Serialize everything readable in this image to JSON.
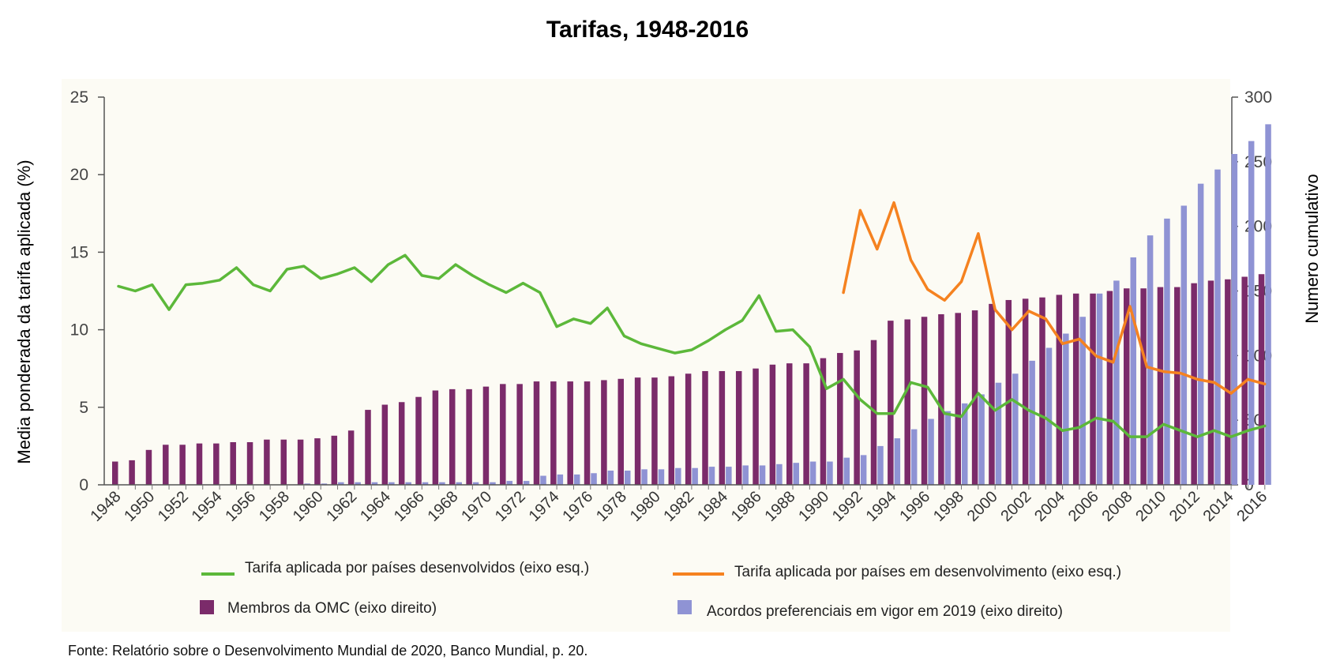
{
  "chart_data": {
    "type": "bar+line",
    "title": "Tarifas, 1948-2016",
    "ylabel_left": "Media ponderada da tarifa aplicada (%)",
    "ylabel_right": "Numero cumulativo",
    "ylim_left": [
      0,
      25
    ],
    "ylim_right": [
      0,
      300
    ],
    "yticks_left": [
      "0",
      "5",
      "10",
      "15",
      "20",
      "25"
    ],
    "yticks_right": [
      "0",
      "50",
      "100",
      "150",
      "200",
      "250",
      "300"
    ],
    "grid": false,
    "legend_position": "bottom",
    "source": "Fonte: Relatório sobre o Desenvolvimento Mundial de 2020, Banco Mundial, p. 20.",
    "colors": {
      "developed": "#5cb83a",
      "developing": "#f58220",
      "wto": "#7b2b6a",
      "pta": "#8f93d4"
    },
    "x": [
      1948,
      1949,
      1950,
      1951,
      1952,
      1953,
      1954,
      1955,
      1956,
      1957,
      1958,
      1959,
      1960,
      1961,
      1962,
      1963,
      1964,
      1965,
      1966,
      1967,
      1968,
      1969,
      1970,
      1971,
      1972,
      1973,
      1974,
      1975,
      1976,
      1977,
      1978,
      1979,
      1980,
      1981,
      1982,
      1983,
      1984,
      1985,
      1986,
      1987,
      1988,
      1989,
      1990,
      1991,
      1992,
      1993,
      1994,
      1995,
      1996,
      1997,
      1998,
      1999,
      2000,
      2001,
      2002,
      2003,
      2004,
      2005,
      2006,
      2007,
      2008,
      2009,
      2010,
      2011,
      2012,
      2013,
      2014,
      2015,
      2016
    ],
    "xtick_labels": [
      "1948",
      "1950",
      "1952",
      "1954",
      "1956",
      "1958",
      "1960",
      "1962",
      "1964",
      "1966",
      "1968",
      "1970",
      "1972",
      "1974",
      "1976",
      "1978",
      "1980",
      "1982",
      "1984",
      "1986",
      "1988",
      "1990",
      "1992",
      "1994",
      "1996",
      "1998",
      "2000",
      "2002",
      "2004",
      "2006",
      "2008",
      "2010",
      "2012",
      "2014",
      "2016"
    ],
    "series": [
      {
        "name": "Membros da OMC (eixo direito)",
        "type": "bar",
        "axis": "right",
        "values": [
          18,
          19,
          27,
          31,
          31,
          32,
          32,
          33,
          33,
          35,
          35,
          35,
          36,
          38,
          42,
          58,
          62,
          64,
          68,
          73,
          74,
          74,
          76,
          78,
          78,
          80,
          80,
          80,
          80,
          81,
          82,
          83,
          83,
          84,
          86,
          88,
          88,
          88,
          90,
          93,
          94,
          94,
          98,
          102,
          104,
          112,
          127,
          128,
          130,
          132,
          133,
          135,
          140,
          143,
          144,
          145,
          147,
          148,
          148,
          150,
          152,
          152,
          153,
          153,
          156,
          158,
          159,
          161,
          163
        ]
      },
      {
        "name": "Acordos preferenciais em vigor em 2019 (eixo direito)",
        "type": "bar",
        "axis": "right",
        "values": [
          0,
          0,
          0,
          0,
          0,
          0,
          0,
          0,
          0,
          0,
          0,
          1,
          1,
          2,
          2,
          2,
          2,
          2,
          2,
          2,
          2,
          2,
          2,
          3,
          3,
          7,
          8,
          8,
          9,
          11,
          11,
          12,
          12,
          13,
          13,
          14,
          14,
          15,
          15,
          16,
          17,
          18,
          18,
          21,
          23,
          30,
          36,
          43,
          51,
          57,
          63,
          70,
          79,
          86,
          96,
          106,
          117,
          130,
          148,
          158,
          176,
          193,
          206,
          216,
          233,
          244,
          256,
          266,
          279
        ]
      },
      {
        "name": "Tarifa aplicada por países desenvolvidos (eixo esq.)",
        "type": "line",
        "axis": "left",
        "values": [
          12.8,
          12.5,
          12.9,
          11.3,
          12.9,
          13.0,
          13.2,
          14.0,
          12.9,
          12.5,
          13.9,
          14.1,
          13.3,
          13.6,
          14.0,
          13.1,
          14.2,
          14.8,
          13.5,
          13.3,
          14.2,
          13.5,
          12.9,
          12.4,
          13.0,
          12.4,
          10.2,
          10.7,
          10.4,
          11.4,
          9.6,
          9.1,
          8.8,
          8.5,
          8.7,
          9.3,
          10.0,
          10.6,
          12.2,
          9.9,
          10.0,
          8.9,
          6.2,
          6.8,
          5.5,
          4.6,
          4.6,
          6.6,
          6.3,
          4.6,
          4.4,
          5.9,
          4.8,
          5.5,
          4.8,
          4.3,
          3.5,
          3.7,
          4.3,
          4.1,
          3.1,
          3.1,
          3.9,
          3.5,
          3.1,
          3.5,
          3.1,
          3.5,
          3.8
        ]
      },
      {
        "name": "Tarifa aplicada por países em desenvolvimento (eixo esq.)",
        "type": "line",
        "axis": "left",
        "values": [
          null,
          null,
          null,
          null,
          null,
          null,
          null,
          null,
          null,
          null,
          null,
          null,
          null,
          null,
          null,
          null,
          null,
          null,
          null,
          null,
          null,
          null,
          null,
          null,
          null,
          null,
          null,
          null,
          null,
          null,
          null,
          null,
          null,
          null,
          null,
          null,
          null,
          null,
          null,
          null,
          null,
          null,
          null,
          12.4,
          17.7,
          15.2,
          18.2,
          14.5,
          12.6,
          11.9,
          13.1,
          16.2,
          11.3,
          10.0,
          11.2,
          10.7,
          9.1,
          9.4,
          8.3,
          7.9,
          11.5,
          7.6,
          7.3,
          7.2,
          6.8,
          6.6,
          5.9,
          6.8,
          6.5
        ]
      }
    ]
  }
}
